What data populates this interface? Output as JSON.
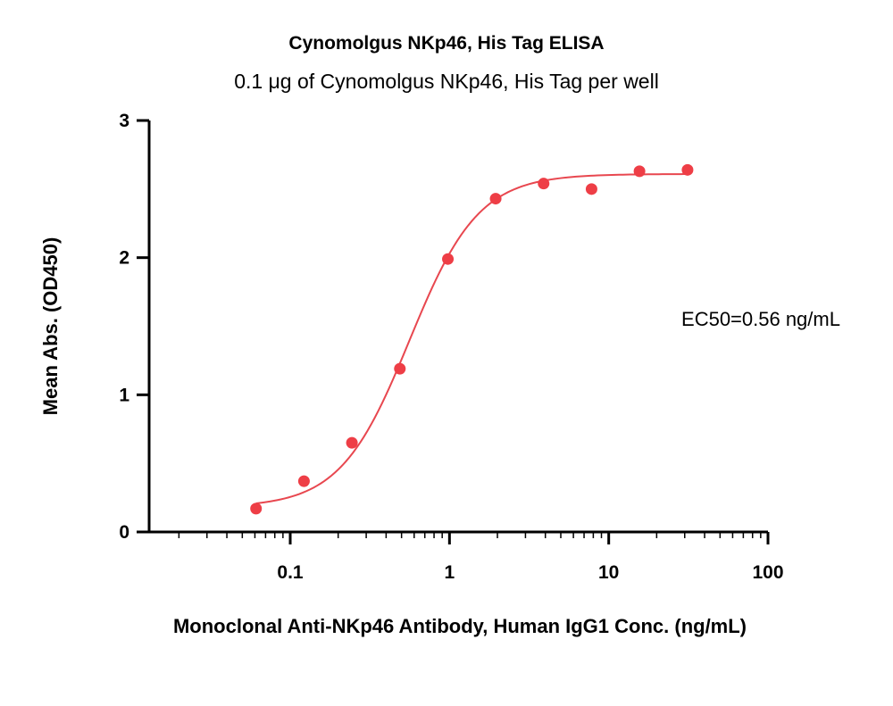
{
  "chart_data": {
    "type": "scatter",
    "title": "Cynomolgus NKp46, His Tag ELISA",
    "subtitle": "0.1 μg of Cynomolgus NKp46, His Tag per well",
    "xlabel": "Monoclonal Anti-NKp46 Antibody, Human IgG1 Conc. (ng/mL)",
    "ylabel": "Mean Abs. (OD450)",
    "x_scale": "log",
    "xlim": [
      0.013,
      100
    ],
    "ylim": [
      0,
      3
    ],
    "x_ticks": [
      {
        "value": 0.1,
        "label": "0.1"
      },
      {
        "value": 1,
        "label": "1"
      },
      {
        "value": 10,
        "label": "10"
      },
      {
        "value": 100,
        "label": "100"
      }
    ],
    "y_ticks": [
      {
        "value": 0,
        "label": "0"
      },
      {
        "value": 1,
        "label": "1"
      },
      {
        "value": 2,
        "label": "2"
      },
      {
        "value": 3,
        "label": "3"
      }
    ],
    "grid": false,
    "point_color": "#ee3e46",
    "curve_color": "#e8474f",
    "series": [
      {
        "x": [
          0.061,
          0.122,
          0.244,
          0.488,
          0.977,
          1.95,
          3.9,
          7.8,
          15.6,
          31.25
        ],
        "y": [
          0.17,
          0.37,
          0.65,
          1.19,
          1.99,
          2.43,
          2.54,
          2.5,
          2.63,
          2.64
        ]
      }
    ],
    "fit": {
      "model": "4PL",
      "bottom": 0.18,
      "top": 2.61,
      "ec50": 0.56,
      "hill": 2.0
    },
    "annotation": "EC50=0.56 ng/mL"
  }
}
